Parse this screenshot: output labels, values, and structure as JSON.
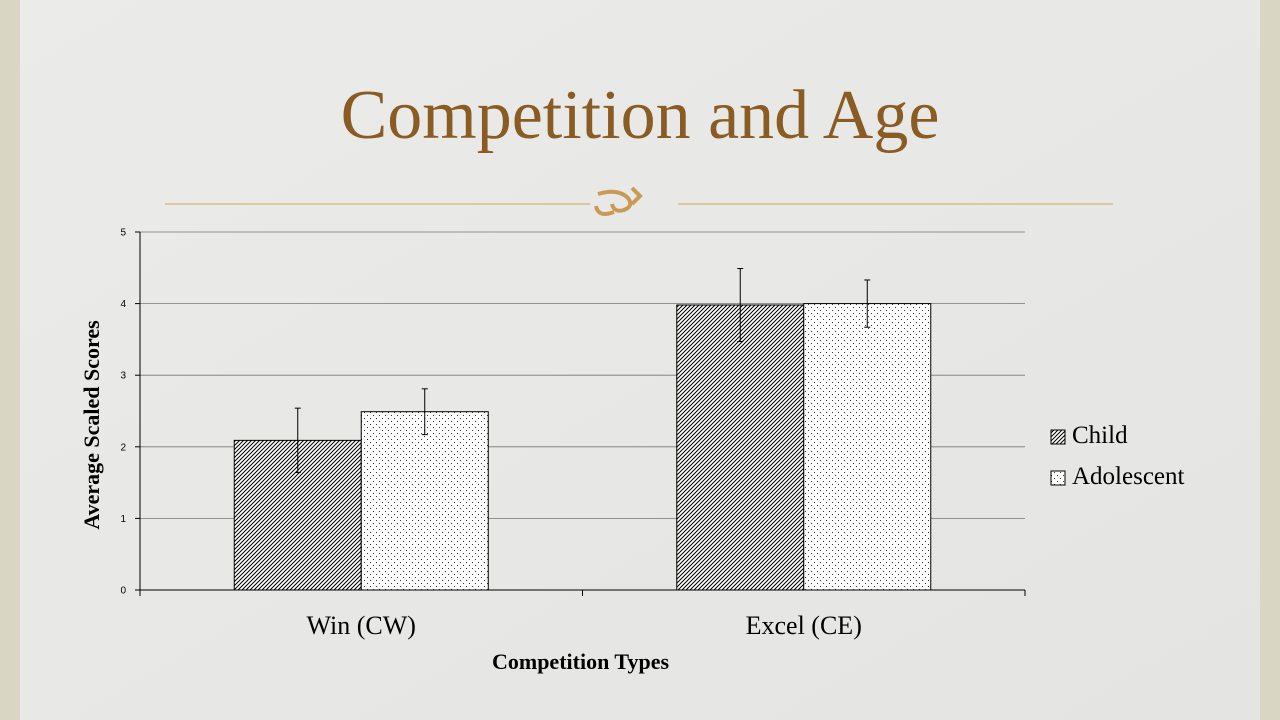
{
  "chart_data": {
    "type": "bar",
    "title": "Competition and Age",
    "categories": [
      "Win (CW)",
      "Excel (CE)"
    ],
    "series": [
      {
        "name": "Child",
        "color": "#000000",
        "pattern": "hatch",
        "values": [
          2.09,
          3.98
        ],
        "errors": [
          0.45,
          0.51
        ]
      },
      {
        "name": "Adolescent",
        "color": "#000000",
        "pattern": "dots",
        "values": [
          2.49,
          4.0
        ],
        "errors": [
          0.32,
          0.33
        ]
      }
    ],
    "ylim": [
      0,
      5
    ],
    "yticks": [
      0,
      1,
      2,
      3,
      4,
      5
    ],
    "grid": true,
    "x_label": "Competition Types",
    "y_label": "Average Scaled Scores",
    "legend": "right"
  }
}
